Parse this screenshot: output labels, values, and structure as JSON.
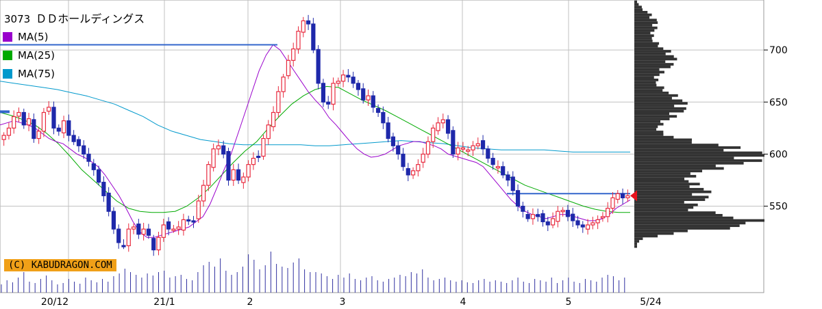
{
  "header": {
    "code": "3073",
    "name": "ＤＤホールディングス"
  },
  "legend": [
    {
      "label": "MA(5)",
      "color": "#9900cc"
    },
    {
      "label": "MA(25)",
      "color": "#00aa00"
    },
    {
      "label": "MA(75)",
      "color": "#0099cc"
    }
  ],
  "copyright": "(C) KABUDRAGON.COM",
  "colors": {
    "up": "#e8283c",
    "down": "#1e28aa",
    "grid": "#c0c0c0",
    "hline": "#3366cc",
    "profile": "#333333",
    "marker": "#e8141e"
  },
  "chart_data": {
    "type": "candlestick",
    "y_axis": {
      "ticks": [
        550,
        600,
        650,
        700
      ],
      "ylim": [
        467,
        748
      ]
    },
    "x_axis": {
      "ticks": [
        "20/12",
        "21/1",
        "2",
        "3",
        "4",
        "5",
        "5/24"
      ]
    },
    "last_price": 560,
    "horizontal_levels": [
      705,
      562
    ],
    "closes": [
      618,
      625,
      636,
      640,
      628,
      634,
      615,
      622,
      640,
      645,
      625,
      622,
      632,
      618,
      612,
      608,
      600,
      593,
      585,
      573,
      560,
      545,
      528,
      515,
      512,
      528,
      530,
      523,
      528,
      522,
      508,
      520,
      532,
      528,
      528,
      530,
      537,
      536,
      535,
      555,
      570,
      590,
      605,
      608,
      600,
      575,
      585,
      575,
      578,
      590,
      596,
      598,
      615,
      628,
      640,
      660,
      674,
      690,
      701,
      718,
      728,
      725,
      700,
      668,
      650,
      648,
      668,
      670,
      676,
      674,
      668,
      662,
      652,
      656,
      645,
      640,
      630,
      615,
      608,
      600,
      588,
      580,
      584,
      590,
      600,
      612,
      625,
      630,
      633,
      620,
      600,
      606,
      606,
      604,
      608,
      610,
      605,
      596,
      590,
      588,
      580,
      575,
      565,
      550,
      545,
      538,
      542,
      540,
      535,
      532,
      538,
      545,
      546,
      540,
      536,
      532,
      530,
      532,
      534,
      537,
      540,
      548,
      558,
      562,
      558,
      560
    ],
    "ma5": [
      628,
      630,
      632,
      630,
      628,
      625,
      620,
      615,
      612,
      610,
      605,
      600,
      597,
      593,
      588,
      580,
      570,
      560,
      548,
      535,
      525,
      520,
      520,
      522,
      524,
      526,
      528,
      530,
      535,
      540,
      552,
      568,
      585,
      600,
      620,
      640,
      660,
      680,
      695,
      705,
      700,
      690,
      680,
      670,
      660,
      652,
      645,
      635,
      628,
      620,
      612,
      605,
      600,
      597,
      598,
      600,
      604,
      608,
      610,
      612,
      612,
      610,
      608,
      605,
      600,
      598,
      596,
      594,
      592,
      588,
      580,
      572,
      564,
      556,
      550,
      545,
      542,
      540,
      538,
      540,
      542,
      542,
      540,
      538,
      536,
      536,
      538,
      542,
      548,
      552,
      556
    ],
    "ma25": [
      640,
      637,
      633,
      628,
      620,
      610,
      598,
      585,
      575,
      565,
      555,
      548,
      545,
      544,
      544,
      545,
      550,
      558,
      568,
      580,
      592,
      603,
      612,
      625,
      637,
      648,
      656,
      662,
      665,
      664,
      658,
      652,
      647,
      642,
      636,
      630,
      624,
      618,
      612,
      606,
      600,
      594,
      588,
      582,
      576,
      570,
      566,
      562,
      558,
      554,
      550,
      547,
      545,
      544,
      544
    ],
    "ma75": [
      670,
      668,
      666,
      664,
      662,
      659,
      656,
      652,
      648,
      642,
      636,
      628,
      622,
      618,
      614,
      612,
      610,
      609,
      609,
      609,
      609,
      609,
      608,
      608,
      609,
      610,
      611,
      612,
      613,
      612,
      611,
      610,
      608,
      606,
      605,
      604,
      604,
      604,
      604,
      603,
      602,
      602,
      602,
      602,
      602
    ],
    "volume": [
      12,
      18,
      15,
      22,
      30,
      16,
      14,
      20,
      25,
      18,
      12,
      14,
      20,
      16,
      13,
      22,
      18,
      15,
      20,
      16,
      24,
      28,
      35,
      30,
      26,
      22,
      28,
      25,
      30,
      32,
      22,
      24,
      26,
      20,
      18,
      30,
      40,
      45,
      38,
      50,
      32,
      26,
      30,
      38,
      56,
      48,
      34,
      40,
      60,
      42,
      38,
      36,
      44,
      50,
      34,
      30,
      30,
      28,
      24,
      20,
      26,
      22,
      28,
      20,
      18,
      22,
      24,
      18,
      16,
      20,
      22,
      26,
      24,
      30,
      28,
      34,
      22,
      18,
      20,
      22,
      18,
      16,
      18,
      15,
      14,
      18,
      20,
      16,
      18,
      16,
      14,
      18,
      22,
      16,
      14,
      20,
      18,
      16,
      22,
      14,
      18,
      22,
      16,
      14,
      20,
      18,
      16,
      22,
      26,
      24,
      18,
      22
    ]
  }
}
